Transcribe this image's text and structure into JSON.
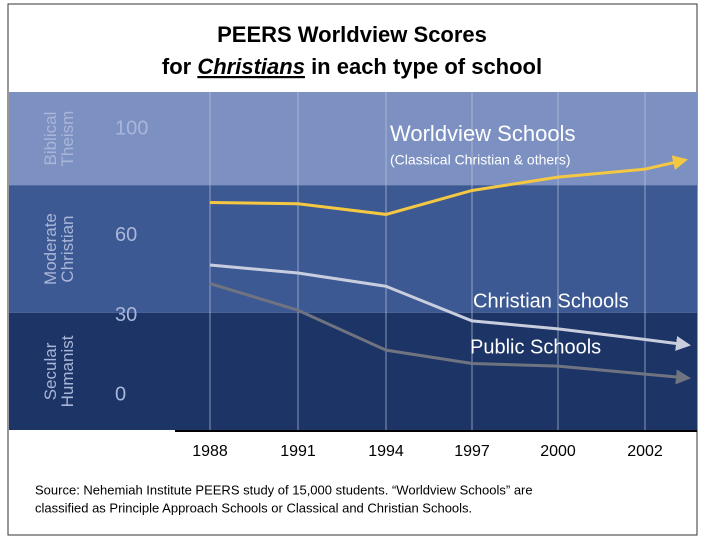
{
  "chart_data": {
    "type": "line",
    "title": [
      "PEERS Worldview Scores",
      "for",
      "Christians",
      "in each type of school"
    ],
    "categories": [
      "1988",
      "1991",
      "1994",
      "1997",
      "2000",
      "2002"
    ],
    "series": [
      {
        "name": "Worldview Schools",
        "subtitle": "(Classical Christian & others)",
        "color": "#f5c842",
        "values": [
          72.5,
          72,
          68,
          77,
          82,
          85
        ]
      },
      {
        "name": "Christian Schools",
        "color": "#c8cede",
        "values": [
          49,
          46,
          41,
          28,
          25,
          21
        ]
      },
      {
        "name": "Public Schools",
        "color": "#707480",
        "values": [
          42,
          32,
          17,
          12,
          11,
          8
        ]
      }
    ],
    "bands": [
      {
        "lines": [
          "Biblical",
          "Theism"
        ],
        "from": 79,
        "to": 114,
        "color": "#7d90c2"
      },
      {
        "lines": [
          "Moderate",
          "Christian"
        ],
        "from": 31,
        "to": 79,
        "color": "#3d5993"
      },
      {
        "lines": [
          "Secular",
          "Humanist"
        ],
        "from": -13,
        "to": 31,
        "color": "#1d3467"
      }
    ],
    "ylim": [
      -13,
      114
    ],
    "yticks": [
      0,
      30,
      60,
      100
    ],
    "grid": true,
    "source": [
      "Source:  Nehemiah Institute PEERS study of 15,000 students.  “Worldview Schools” are",
      "classified as Principle Approach Schools or Classical and Christian Schools."
    ]
  }
}
